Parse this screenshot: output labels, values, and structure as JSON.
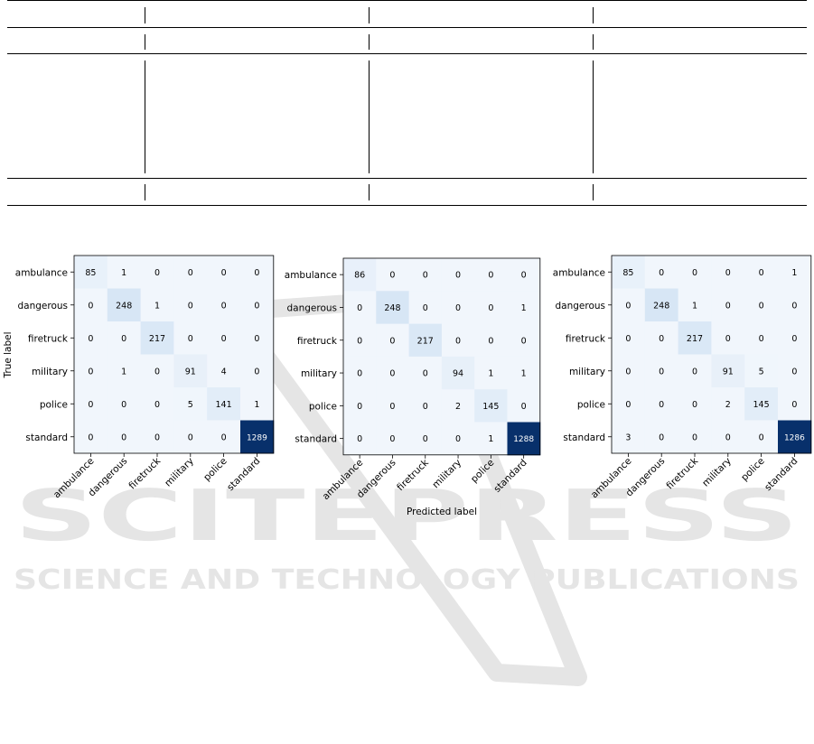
{
  "colors": {
    "cell_dark": "#08306b",
    "cell_mid": "#d7e6f5",
    "cell_light": "#f1f6fc",
    "text_dark": "#000000",
    "text_light": "#ffffff",
    "watermark": "#e5e5e5"
  },
  "watermark": {
    "line1": "SCITEPRESS",
    "line2": "SCIENCE AND TECHNOLOGY PUBLICATIONS"
  },
  "chart_data": [
    {
      "type": "heatmap",
      "xlabel": "",
      "ylabel": "True label",
      "x_categories": [
        "ambulance",
        "dangerous",
        "firetruck",
        "military",
        "police",
        "standard"
      ],
      "y_categories": [
        "ambulance",
        "dangerous",
        "firetruck",
        "military",
        "police",
        "standard"
      ],
      "values": [
        [
          85,
          1,
          0,
          0,
          0,
          0
        ],
        [
          0,
          248,
          1,
          0,
          0,
          0
        ],
        [
          0,
          0,
          217,
          0,
          0,
          0
        ],
        [
          0,
          1,
          0,
          91,
          4,
          0
        ],
        [
          0,
          0,
          0,
          5,
          141,
          1
        ],
        [
          0,
          0,
          0,
          0,
          0,
          1289
        ]
      ]
    },
    {
      "type": "heatmap",
      "xlabel": "Predicted label",
      "ylabel": "",
      "x_categories": [
        "ambulance",
        "dangerous",
        "firetruck",
        "military",
        "police",
        "standard"
      ],
      "y_categories": [
        "ambulance",
        "dangerous",
        "firetruck",
        "military",
        "police",
        "standard"
      ],
      "values": [
        [
          86,
          0,
          0,
          0,
          0,
          0
        ],
        [
          0,
          248,
          0,
          0,
          0,
          1
        ],
        [
          0,
          0,
          217,
          0,
          0,
          0
        ],
        [
          0,
          0,
          0,
          94,
          1,
          1
        ],
        [
          0,
          0,
          0,
          2,
          145,
          0
        ],
        [
          0,
          0,
          0,
          0,
          1,
          1288
        ]
      ]
    },
    {
      "type": "heatmap",
      "xlabel": "",
      "ylabel": "",
      "x_categories": [
        "ambulance",
        "dangerous",
        "firetruck",
        "military",
        "police",
        "standard"
      ],
      "y_categories": [
        "ambulance",
        "dangerous",
        "firetruck",
        "military",
        "police",
        "standard"
      ],
      "values": [
        [
          85,
          0,
          0,
          0,
          0,
          1
        ],
        [
          0,
          248,
          1,
          0,
          0,
          0
        ],
        [
          0,
          0,
          217,
          0,
          0,
          0
        ],
        [
          0,
          0,
          0,
          91,
          5,
          0
        ],
        [
          0,
          0,
          0,
          2,
          145,
          0
        ],
        [
          3,
          0,
          0,
          0,
          0,
          1286
        ]
      ]
    }
  ]
}
